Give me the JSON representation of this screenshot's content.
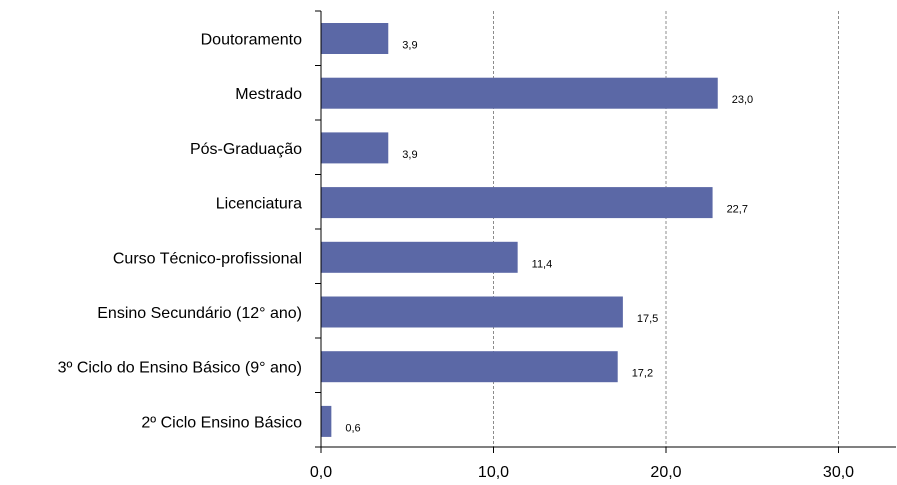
{
  "chart_data": {
    "type": "bar",
    "orientation": "horizontal",
    "categories": [
      "Doutoramento",
      "Mestrado",
      "Pós-Graduação",
      "Licenciatura",
      "Curso Técnico-profissional",
      "Ensino Secundário (12° ano)",
      "3º Ciclo do Ensino Básico (9° ano)",
      "2º Ciclo Ensino Básico"
    ],
    "values": [
      3.9,
      23.0,
      3.9,
      22.7,
      11.4,
      17.5,
      17.2,
      0.6
    ],
    "value_labels": [
      "3,9",
      "23,0",
      "3,9",
      "22,7",
      "11,4",
      "17,5",
      "17,2",
      "0,6"
    ],
    "x_ticks": [
      0,
      10,
      20,
      30
    ],
    "x_tick_labels": [
      "0,0",
      "10,0",
      "20,0",
      "30,0"
    ],
    "xlim": [
      0,
      33
    ],
    "title": "",
    "xlabel": "",
    "ylabel": "",
    "grid": "vertical dashed",
    "legend": "none",
    "bar_color": "#5B68A6"
  }
}
